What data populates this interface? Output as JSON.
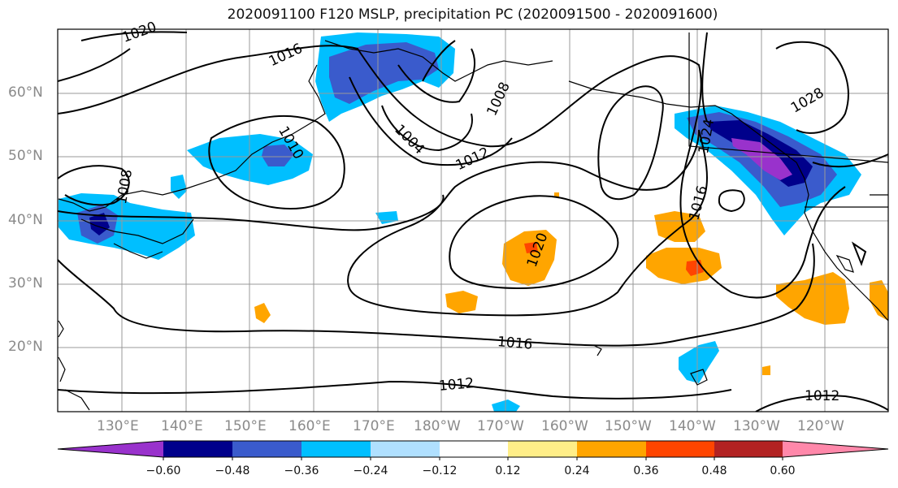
{
  "title": "2020091100 F120 MSLP, precipitation PC (2020091500 - 2020091600)",
  "map": {
    "lat_labels": [
      "60°N",
      "50°N",
      "40°N",
      "30°N",
      "20°N"
    ],
    "lon_labels": [
      "130°E",
      "140°E",
      "150°E",
      "160°E",
      "170°E",
      "180°W",
      "170°W",
      "160°W",
      "150°W",
      "140°W",
      "130°W",
      "120°W"
    ],
    "isobar_labels": [
      "1020",
      "1016",
      "1008",
      "1004",
      "1012",
      "1010",
      "1008",
      "1024",
      "1016",
      "1028",
      "1020",
      "1016",
      "1012",
      "1012"
    ]
  },
  "colorbar": {
    "tick_labels": [
      "−0.60",
      "−0.48",
      "−0.36",
      "−0.24",
      "−0.12",
      "0.12",
      "0.24",
      "0.36",
      "0.48",
      "0.60"
    ],
    "colors": [
      "#9932cc",
      "#00008b",
      "#3a5bcc",
      "#00bfff",
      "#b0e0ff",
      "#ffffff",
      "#ffee88",
      "#ffa500",
      "#ff4500",
      "#b22222",
      "#ff88aa"
    ]
  }
}
